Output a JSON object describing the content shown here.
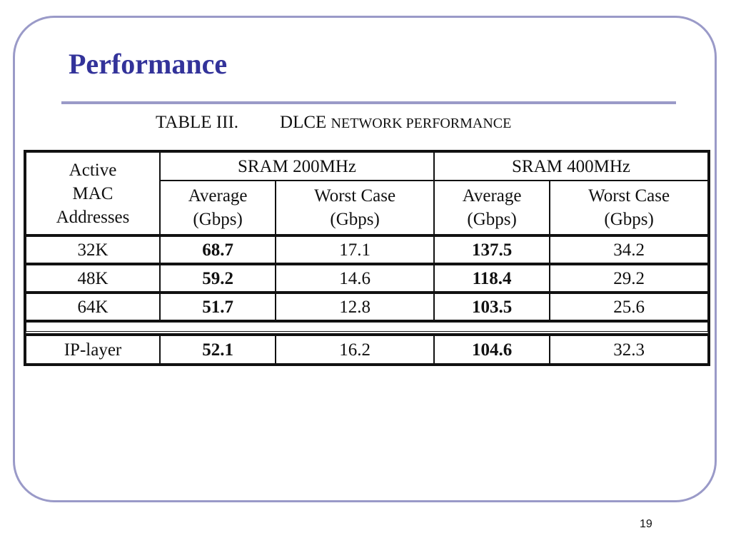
{
  "slide": {
    "title": "Performance",
    "page_number": "19"
  },
  "table": {
    "caption_label": "TABLE III.",
    "caption_prefix": "DLCE",
    "caption_rest": "NETWORK PERFORMANCE",
    "row_header": [
      "Active",
      "MAC",
      "Addresses"
    ],
    "groups": [
      "SRAM 200MHz",
      "SRAM 400MHz"
    ],
    "subheaders": [
      [
        "Average",
        "(Gbps)"
      ],
      [
        "Worst Case",
        "(Gbps)"
      ],
      [
        "Average",
        "(Gbps)"
      ],
      [
        "Worst Case",
        "(Gbps)"
      ]
    ],
    "rows": [
      [
        "32K",
        "68.7",
        "17.1",
        "137.5",
        "34.2"
      ],
      [
        "48K",
        "59.2",
        "14.6",
        "118.4",
        "29.2"
      ],
      [
        "64K",
        "51.7",
        "12.8",
        "103.5",
        "25.6"
      ]
    ],
    "ip_row": [
      "IP-layer",
      "52.1",
      "16.2",
      "104.6",
      "32.3"
    ]
  }
}
